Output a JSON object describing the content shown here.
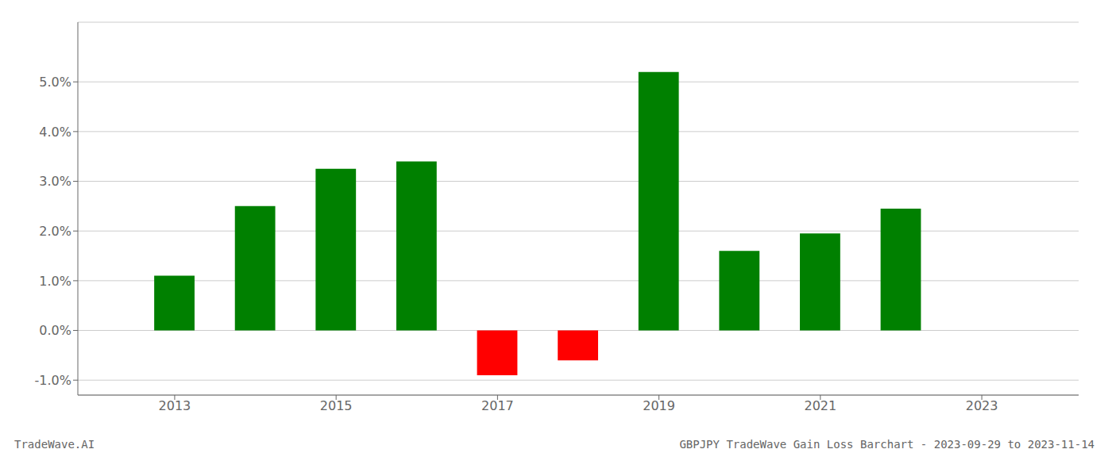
{
  "chart_data": {
    "type": "bar",
    "x": [
      2013,
      2014,
      2015,
      2016,
      2017,
      2018,
      2019,
      2020,
      2021,
      2022
    ],
    "values": [
      0.011,
      0.025,
      0.0325,
      0.034,
      -0.009,
      -0.006,
      0.052,
      0.016,
      0.0195,
      0.0245
    ],
    "colors": [
      "#008000",
      "#008000",
      "#008000",
      "#008000",
      "#ff0000",
      "#ff0000",
      "#008000",
      "#008000",
      "#008000",
      "#008000"
    ],
    "xlim": [
      2011.8,
      2024.2
    ],
    "xticks": [
      2013,
      2015,
      2017,
      2019,
      2021,
      2023
    ],
    "ylim": [
      -0.013,
      0.062
    ],
    "yticks": [
      {
        "value": -0.01,
        "label": "-1.0%"
      },
      {
        "value": 0.0,
        "label": "0.0%"
      },
      {
        "value": 0.01,
        "label": "1.0%"
      },
      {
        "value": 0.02,
        "label": "2.0%"
      },
      {
        "value": 0.03,
        "label": "3.0%"
      },
      {
        "value": 0.04,
        "label": "4.0%"
      },
      {
        "value": 0.05,
        "label": "5.0%"
      }
    ],
    "grid": true,
    "annotations": [
      "TradeWave.AI",
      "GBPJPY TradeWave Gain Loss Barchart - 2023-09-29 to 2023-11-14"
    ]
  }
}
